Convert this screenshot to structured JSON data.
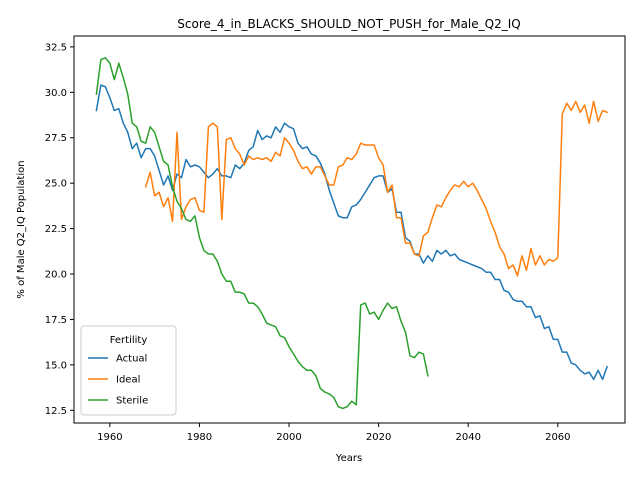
{
  "chart_data": {
    "type": "line",
    "title": "Score_4_in_BLACKS_SHOULD_NOT_PUSH_for_Male_Q2_IQ",
    "xlabel": "Years",
    "ylabel": "% of Male Q2_IQ Population",
    "xlim": [
      1952,
      2075
    ],
    "ylim": [
      11.8,
      33.1
    ],
    "x_ticks": [
      1960,
      1980,
      2000,
      2020,
      2040,
      2060
    ],
    "y_ticks": [
      12.5,
      15.0,
      17.5,
      20.0,
      22.5,
      25.0,
      27.5,
      30.0,
      32.5
    ],
    "y_tick_labels": [
      "12.5",
      "15.0",
      "17.5",
      "20.0",
      "22.5",
      "25.0",
      "27.5",
      "30.0",
      "32.5"
    ],
    "grid": false,
    "legend": {
      "title": "Fertility",
      "placement": "lower-left"
    },
    "series": [
      {
        "name": "Actual",
        "color": "#1f77b4",
        "points": [
          [
            1957,
            29.0
          ],
          [
            1958,
            30.4
          ],
          [
            1959,
            30.3
          ],
          [
            1960,
            29.7
          ],
          [
            1961,
            29.0
          ],
          [
            1962,
            29.1
          ],
          [
            1963,
            28.3
          ],
          [
            1964,
            27.8
          ],
          [
            1965,
            26.9
          ],
          [
            1966,
            27.2
          ],
          [
            1967,
            26.4
          ],
          [
            1968,
            26.9
          ],
          [
            1969,
            26.9
          ],
          [
            1970,
            26.5
          ],
          [
            1971,
            25.7
          ],
          [
            1972,
            24.9
          ],
          [
            1973,
            25.4
          ],
          [
            1974,
            24.6
          ],
          [
            1975,
            25.5
          ],
          [
            1976,
            25.3
          ],
          [
            1977,
            26.3
          ],
          [
            1978,
            25.9
          ],
          [
            1979,
            26.0
          ],
          [
            1980,
            25.9
          ],
          [
            1981,
            25.6
          ],
          [
            1982,
            25.3
          ],
          [
            1983,
            25.5
          ],
          [
            1984,
            25.8
          ],
          [
            1985,
            25.4
          ],
          [
            1986,
            25.4
          ],
          [
            1987,
            25.3
          ],
          [
            1988,
            26.0
          ],
          [
            1989,
            25.8
          ],
          [
            1990,
            26.1
          ],
          [
            1991,
            26.8
          ],
          [
            1992,
            27.0
          ],
          [
            1993,
            27.9
          ],
          [
            1994,
            27.4
          ],
          [
            1995,
            27.6
          ],
          [
            1996,
            27.5
          ],
          [
            1997,
            28.1
          ],
          [
            1998,
            27.8
          ],
          [
            1999,
            28.3
          ],
          [
            2000,
            28.1
          ],
          [
            2001,
            28.0
          ],
          [
            2002,
            27.2
          ],
          [
            2003,
            26.9
          ],
          [
            2004,
            27.0
          ],
          [
            2005,
            26.6
          ],
          [
            2006,
            26.5
          ],
          [
            2007,
            26.1
          ],
          [
            2008,
            25.5
          ],
          [
            2009,
            24.6
          ],
          [
            2010,
            23.9
          ],
          [
            2011,
            23.2
          ],
          [
            2012,
            23.1
          ],
          [
            2013,
            23.1
          ],
          [
            2014,
            23.7
          ],
          [
            2015,
            23.8
          ],
          [
            2016,
            24.1
          ],
          [
            2017,
            24.5
          ],
          [
            2018,
            24.9
          ],
          [
            2019,
            25.3
          ],
          [
            2020,
            25.4
          ],
          [
            2021,
            25.4
          ],
          [
            2022,
            24.5
          ],
          [
            2023,
            24.7
          ],
          [
            2024,
            23.4
          ],
          [
            2025,
            23.4
          ],
          [
            2026,
            22.0
          ],
          [
            2027,
            21.8
          ],
          [
            2028,
            21.1
          ],
          [
            2029,
            21.1
          ],
          [
            2030,
            20.6
          ],
          [
            2031,
            21.0
          ],
          [
            2032,
            20.7
          ],
          [
            2033,
            21.3
          ],
          [
            2034,
            21.1
          ],
          [
            2035,
            21.3
          ],
          [
            2036,
            21.0
          ],
          [
            2037,
            21.1
          ],
          [
            2038,
            20.8
          ],
          [
            2039,
            20.7
          ],
          [
            2040,
            20.6
          ],
          [
            2041,
            20.5
          ],
          [
            2042,
            20.4
          ],
          [
            2043,
            20.3
          ],
          [
            2044,
            20.1
          ],
          [
            2045,
            20.1
          ],
          [
            2046,
            19.7
          ],
          [
            2047,
            19.7
          ],
          [
            2048,
            19.1
          ],
          [
            2049,
            19.0
          ],
          [
            2050,
            18.6
          ],
          [
            2051,
            18.5
          ],
          [
            2052,
            18.5
          ],
          [
            2053,
            18.2
          ],
          [
            2054,
            18.2
          ],
          [
            2055,
            17.6
          ],
          [
            2056,
            17.7
          ],
          [
            2057,
            17.0
          ],
          [
            2058,
            17.1
          ],
          [
            2059,
            16.4
          ],
          [
            2060,
            16.4
          ],
          [
            2061,
            15.7
          ],
          [
            2062,
            15.7
          ],
          [
            2063,
            15.1
          ],
          [
            2064,
            15.0
          ],
          [
            2065,
            14.7
          ],
          [
            2066,
            14.5
          ],
          [
            2067,
            14.6
          ],
          [
            2068,
            14.2
          ],
          [
            2069,
            14.7
          ],
          [
            2070,
            14.2
          ],
          [
            2071,
            14.9
          ]
        ]
      },
      {
        "name": "Ideal",
        "color": "#ff7f0e",
        "points": [
          [
            1968,
            24.8
          ],
          [
            1969,
            25.6
          ],
          [
            1970,
            24.3
          ],
          [
            1971,
            24.5
          ],
          [
            1972,
            23.7
          ],
          [
            1973,
            24.2
          ],
          [
            1974,
            22.9
          ],
          [
            1975,
            27.8
          ],
          [
            1976,
            23.0
          ],
          [
            1977,
            23.7
          ],
          [
            1978,
            24.1
          ],
          [
            1979,
            24.2
          ],
          [
            1980,
            23.5
          ],
          [
            1981,
            23.4
          ],
          [
            1982,
            28.1
          ],
          [
            1983,
            28.3
          ],
          [
            1984,
            28.1
          ],
          [
            1985,
            23.0
          ],
          [
            1986,
            27.4
          ],
          [
            1987,
            27.5
          ],
          [
            1988,
            26.9
          ],
          [
            1989,
            26.6
          ],
          [
            1990,
            26.0
          ],
          [
            1991,
            26.5
          ],
          [
            1992,
            26.3
          ],
          [
            1993,
            26.4
          ],
          [
            1994,
            26.3
          ],
          [
            1995,
            26.4
          ],
          [
            1996,
            26.2
          ],
          [
            1997,
            26.7
          ],
          [
            1998,
            26.5
          ],
          [
            1999,
            27.5
          ],
          [
            2000,
            27.2
          ],
          [
            2001,
            26.8
          ],
          [
            2002,
            26.2
          ],
          [
            2003,
            25.8
          ],
          [
            2004,
            25.9
          ],
          [
            2005,
            25.5
          ],
          [
            2006,
            25.9
          ],
          [
            2007,
            25.9
          ],
          [
            2008,
            25.4
          ],
          [
            2009,
            24.9
          ],
          [
            2010,
            24.9
          ],
          [
            2011,
            25.9
          ],
          [
            2012,
            26.0
          ],
          [
            2013,
            26.4
          ],
          [
            2014,
            26.3
          ],
          [
            2015,
            26.6
          ],
          [
            2016,
            27.2
          ],
          [
            2017,
            27.1
          ],
          [
            2018,
            27.1
          ],
          [
            2019,
            27.1
          ],
          [
            2020,
            26.4
          ],
          [
            2021,
            26.0
          ],
          [
            2022,
            24.5
          ],
          [
            2023,
            24.9
          ],
          [
            2024,
            23.1
          ],
          [
            2025,
            23.1
          ],
          [
            2026,
            21.7
          ],
          [
            2027,
            21.7
          ],
          [
            2028,
            21.1
          ],
          [
            2029,
            21.0
          ],
          [
            2030,
            22.1
          ],
          [
            2031,
            22.3
          ],
          [
            2032,
            23.1
          ],
          [
            2033,
            23.8
          ],
          [
            2034,
            23.7
          ],
          [
            2035,
            24.2
          ],
          [
            2036,
            24.6
          ],
          [
            2037,
            24.9
          ],
          [
            2038,
            24.8
          ],
          [
            2039,
            25.1
          ],
          [
            2040,
            24.8
          ],
          [
            2041,
            25.0
          ],
          [
            2042,
            24.6
          ],
          [
            2043,
            24.1
          ],
          [
            2044,
            23.6
          ],
          [
            2045,
            22.9
          ],
          [
            2046,
            22.3
          ],
          [
            2047,
            21.5
          ],
          [
            2048,
            21.1
          ],
          [
            2049,
            20.3
          ],
          [
            2050,
            20.5
          ],
          [
            2051,
            19.9
          ],
          [
            2052,
            21.0
          ],
          [
            2053,
            20.2
          ],
          [
            2054,
            21.4
          ],
          [
            2055,
            20.5
          ],
          [
            2056,
            21.0
          ],
          [
            2057,
            20.5
          ],
          [
            2058,
            20.8
          ],
          [
            2059,
            20.7
          ],
          [
            2060,
            20.9
          ],
          [
            2061,
            28.8
          ],
          [
            2062,
            29.4
          ],
          [
            2063,
            29.0
          ],
          [
            2064,
            29.5
          ],
          [
            2065,
            28.9
          ],
          [
            2066,
            29.3
          ],
          [
            2067,
            28.3
          ],
          [
            2068,
            29.5
          ],
          [
            2069,
            28.4
          ],
          [
            2070,
            29.0
          ],
          [
            2071,
            28.9
          ]
        ]
      },
      {
        "name": "Sterile",
        "color": "#2ca02c",
        "points": [
          [
            1957,
            29.9
          ],
          [
            1958,
            31.8
          ],
          [
            1959,
            31.9
          ],
          [
            1960,
            31.6
          ],
          [
            1961,
            30.7
          ],
          [
            1962,
            31.6
          ],
          [
            1963,
            30.8
          ],
          [
            1964,
            29.9
          ],
          [
            1965,
            28.3
          ],
          [
            1966,
            28.1
          ],
          [
            1967,
            27.3
          ],
          [
            1968,
            27.2
          ],
          [
            1969,
            28.1
          ],
          [
            1970,
            27.8
          ],
          [
            1971,
            27.0
          ],
          [
            1972,
            26.2
          ],
          [
            1973,
            26.0
          ],
          [
            1974,
            24.8
          ],
          [
            1975,
            24.0
          ],
          [
            1976,
            23.6
          ],
          [
            1977,
            23.0
          ],
          [
            1978,
            22.9
          ],
          [
            1979,
            23.2
          ],
          [
            1980,
            22.0
          ],
          [
            1981,
            21.3
          ],
          [
            1982,
            21.1
          ],
          [
            1983,
            21.1
          ],
          [
            1984,
            20.7
          ],
          [
            1985,
            20.0
          ],
          [
            1986,
            19.6
          ],
          [
            1987,
            19.6
          ],
          [
            1988,
            19.0
          ],
          [
            1989,
            19.0
          ],
          [
            1990,
            18.9
          ],
          [
            1991,
            18.4
          ],
          [
            1992,
            18.4
          ],
          [
            1993,
            18.2
          ],
          [
            1994,
            17.8
          ],
          [
            1995,
            17.3
          ],
          [
            1996,
            17.2
          ],
          [
            1997,
            17.1
          ],
          [
            1998,
            16.6
          ],
          [
            1999,
            16.5
          ],
          [
            2000,
            16.0
          ],
          [
            2001,
            15.6
          ],
          [
            2002,
            15.2
          ],
          [
            2003,
            14.9
          ],
          [
            2004,
            14.7
          ],
          [
            2005,
            14.7
          ],
          [
            2006,
            14.4
          ],
          [
            2007,
            13.7
          ],
          [
            2008,
            13.5
          ],
          [
            2009,
            13.4
          ],
          [
            2010,
            13.2
          ],
          [
            2011,
            12.7
          ],
          [
            2012,
            12.6
          ],
          [
            2013,
            12.7
          ],
          [
            2014,
            13.0
          ],
          [
            2015,
            12.8
          ],
          [
            2016,
            18.3
          ],
          [
            2017,
            18.4
          ],
          [
            2018,
            17.8
          ],
          [
            2019,
            17.9
          ],
          [
            2020,
            17.5
          ],
          [
            2021,
            18.0
          ],
          [
            2022,
            18.4
          ],
          [
            2023,
            18.1
          ],
          [
            2024,
            18.2
          ],
          [
            2025,
            17.4
          ],
          [
            2026,
            16.8
          ],
          [
            2027,
            15.5
          ],
          [
            2028,
            15.4
          ],
          [
            2029,
            15.7
          ],
          [
            2030,
            15.6
          ],
          [
            2031,
            14.4
          ]
        ]
      }
    ]
  }
}
